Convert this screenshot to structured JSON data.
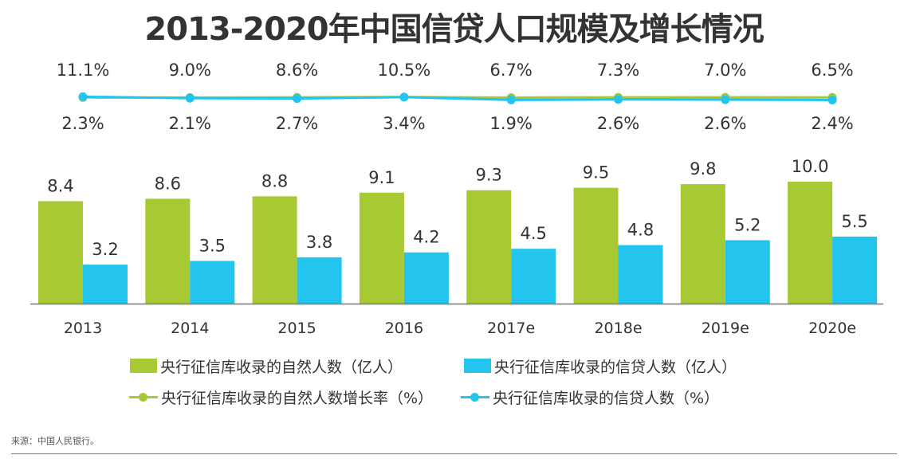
{
  "title": "2013-2020年中国信贷人口规模及增长情况",
  "source": "来源：中国人民银行。",
  "colors": {
    "green": "#a6c934",
    "blue": "#23c5ee",
    "text": "#333333",
    "axis": "#777777"
  },
  "legend": [
    {
      "label": "央行征信库收录的自然人数（亿人）",
      "kind": "bar",
      "color": "#a6c934"
    },
    {
      "label": "央行征信库收录的信贷人数（亿人）",
      "kind": "bar",
      "color": "#23c5ee"
    },
    {
      "label": "央行征信库收录的自然人数增长率（%）",
      "kind": "line",
      "color": "#a6c934"
    },
    {
      "label": "央行征信库收录的信贷人数（%）",
      "kind": "line",
      "color": "#23c5ee"
    }
  ],
  "chart_data": {
    "type": "bar",
    "categories": [
      "2013",
      "2014",
      "2015",
      "2016",
      "2017e",
      "2018e",
      "2019e",
      "2020e"
    ],
    "series": [
      {
        "name": "央行征信库收录的自然人数（亿人）",
        "type": "bar",
        "values": [
          8.4,
          8.6,
          8.8,
          9.1,
          9.3,
          9.5,
          9.8,
          10.0
        ],
        "labels": [
          "8.4",
          "8.6",
          "8.8",
          "9.1",
          "9.3",
          "9.5",
          "9.8",
          "10.0"
        ]
      },
      {
        "name": "央行征信库收录的信贷人数（亿人）",
        "type": "bar",
        "values": [
          3.2,
          3.5,
          3.8,
          4.2,
          4.5,
          4.8,
          5.2,
          5.5
        ],
        "labels": [
          "3.2",
          "3.5",
          "3.8",
          "4.2",
          "4.5",
          "4.8",
          "5.2",
          "5.5"
        ]
      },
      {
        "name": "央行征信库收录的自然人数增长率（%）",
        "type": "line",
        "values": [
          2.3,
          2.1,
          2.7,
          3.4,
          1.9,
          2.6,
          2.6,
          2.4
        ],
        "labels": [
          "2.3%",
          "2.1%",
          "2.7%",
          "3.4%",
          "1.9%",
          "2.6%",
          "2.6%",
          "2.4%"
        ]
      },
      {
        "name": "央行征信库收录的信贷人数（%）",
        "type": "line",
        "values": [
          11.1,
          9.0,
          8.6,
          10.5,
          6.7,
          7.3,
          7.0,
          6.5
        ],
        "labels": [
          "11.1%",
          "9.0%",
          "8.6%",
          "10.5%",
          "6.7%",
          "7.3%",
          "7.0%",
          "6.5%"
        ]
      }
    ],
    "title": "2013-2020年中国信贷人口规模及增长情况",
    "xlabel": "",
    "ylabel": "",
    "grid": false,
    "legend_position": "bottom"
  }
}
